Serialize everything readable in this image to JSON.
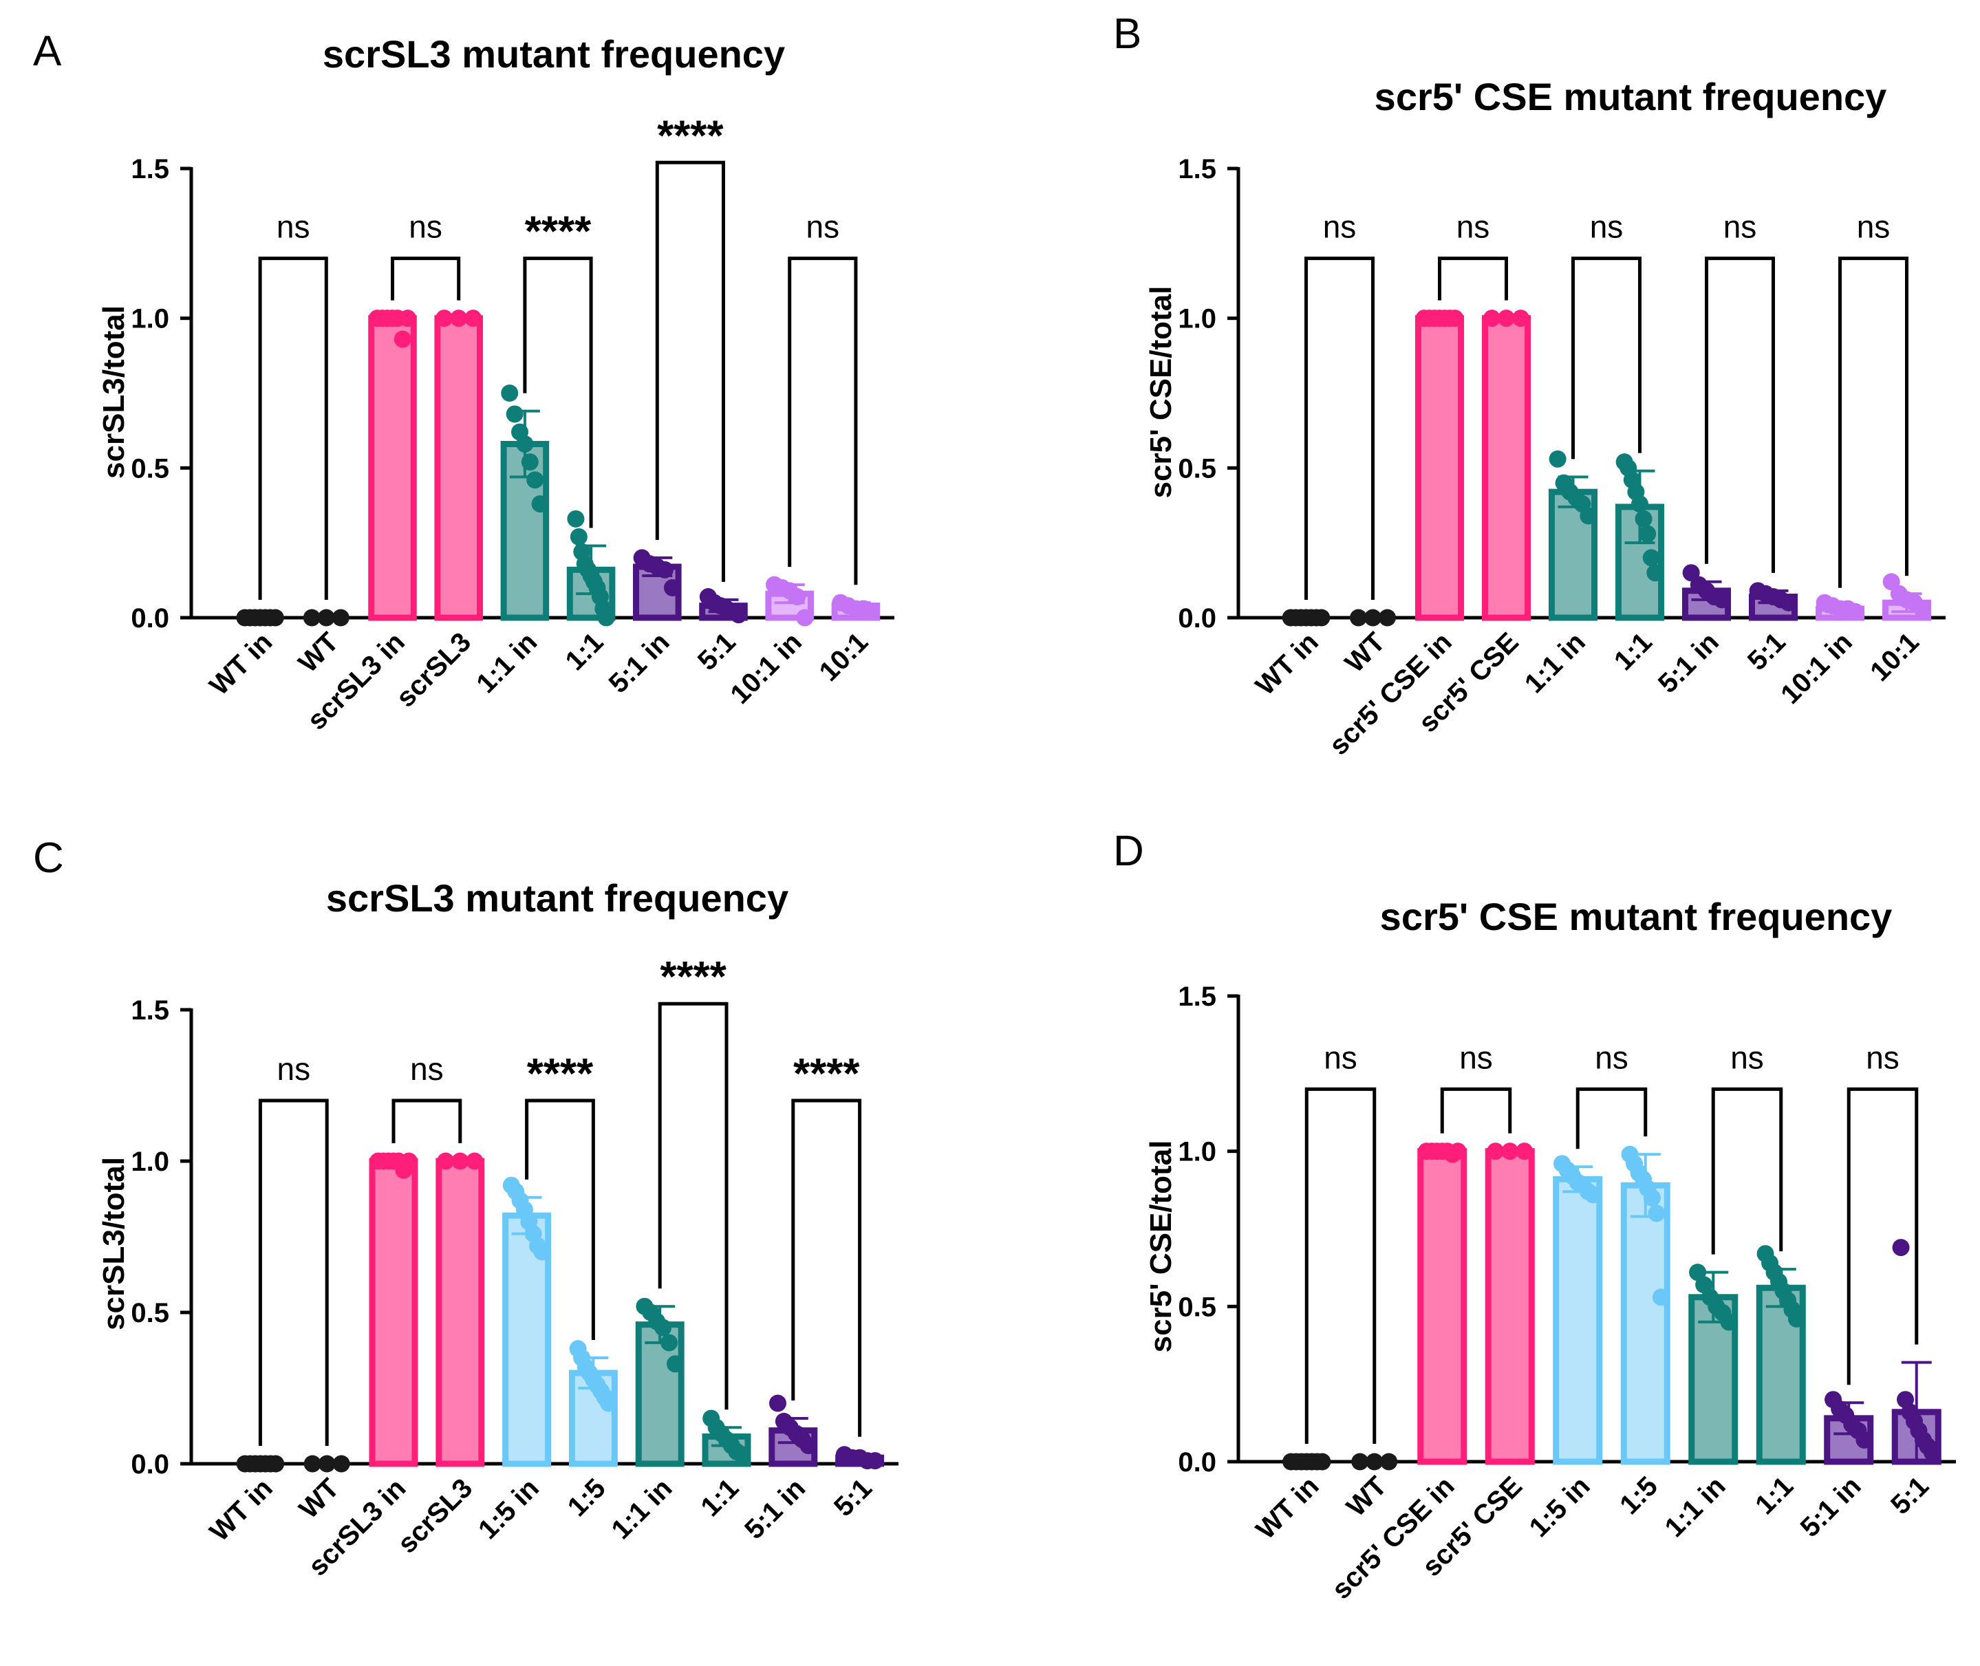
{
  "chart_data": [
    {
      "panel": "A",
      "type": "bar",
      "title": "scrSL3 mutant frequency",
      "ylabel": "scrSL3/total",
      "xlabel": "",
      "ylim": [
        0,
        1.5
      ],
      "yticks": [
        "0.0",
        "0.5",
        "1.0",
        "1.5"
      ],
      "categories": [
        "WT in",
        "WT",
        "scrSL3 in",
        "scrSL3",
        "1:1 in",
        "1:1",
        "5:1 in",
        "5:1",
        "10:1 in",
        "10:1"
      ],
      "values": [
        0.0,
        0.0,
        1.0,
        1.0,
        0.58,
        0.16,
        0.17,
        0.04,
        0.08,
        0.04
      ],
      "errors": [
        0.0,
        0.0,
        0.0,
        0.0,
        0.11,
        0.08,
        0.03,
        0.02,
        0.03,
        0.01
      ],
      "colors": [
        "#1a1a1a",
        "#1a1a1a",
        "#ff1f7a",
        "#ff1f7a",
        "#0f7d78",
        "#0f7d78",
        "#4b1583",
        "#4b1583",
        "#c474f5",
        "#c474f5"
      ],
      "fills": [
        "#1a1a1a",
        "#1a1a1a",
        "#ff7db0",
        "#ff7db0",
        "#7cb7b3",
        "#7cb7b3",
        "#9a79c2",
        "#9a79c2",
        "#e4b6fa",
        "#e4b6fa"
      ],
      "points": [
        [
          0,
          0,
          0,
          0,
          0,
          0,
          0
        ],
        [
          0,
          0,
          0
        ],
        [
          1,
          1,
          1,
          1,
          1,
          0.93,
          1
        ],
        [
          1,
          1,
          1
        ],
        [
          0.75,
          0.68,
          0.62,
          0.58,
          0.52,
          0.46,
          0.38
        ],
        [
          0.33,
          0.27,
          0.22,
          0.18,
          0.16,
          0.14,
          0.12,
          0.1,
          0.07,
          0.03,
          0.0
        ],
        [
          0.2,
          0.18,
          0.17,
          0.16,
          0.1
        ],
        [
          0.07,
          0.05,
          0.04,
          0.03,
          0.02,
          0.01
        ],
        [
          0.11,
          0.1,
          0.09,
          0.07,
          0.0
        ],
        [
          0.05,
          0.04,
          0.03,
          0.03,
          0.02
        ]
      ],
      "comparisons": [
        {
          "pair": [
            0,
            1
          ],
          "label": "ns",
          "y": 1.2
        },
        {
          "pair": [
            2,
            3
          ],
          "label": "ns",
          "y": 1.2
        },
        {
          "pair": [
            4,
            5
          ],
          "label": "****",
          "y": 1.2
        },
        {
          "pair": [
            6,
            7
          ],
          "label": "****",
          "y": 1.52
        },
        {
          "pair": [
            8,
            9
          ],
          "label": "ns",
          "y": 1.2
        }
      ]
    },
    {
      "panel": "B",
      "type": "bar",
      "title": "scr5' CSE mutant frequency",
      "ylabel": "scr5' CSE/total",
      "xlabel": "",
      "ylim": [
        0,
        1.5
      ],
      "yticks": [
        "0.0",
        "0.5",
        "1.0",
        "1.5"
      ],
      "categories": [
        "WT in",
        "WT",
        "scr5' CSE in",
        "scr5' CSE",
        "1:1 in",
        "1:1",
        "5:1 in",
        "5:1",
        "10:1 in",
        "10:1"
      ],
      "values": [
        0.0,
        0.0,
        1.0,
        1.0,
        0.42,
        0.37,
        0.09,
        0.07,
        0.03,
        0.05
      ],
      "errors": [
        0.0,
        0.0,
        0.0,
        0.0,
        0.05,
        0.12,
        0.03,
        0.02,
        0.01,
        0.03
      ],
      "colors": [
        "#1a1a1a",
        "#1a1a1a",
        "#ff1f7a",
        "#ff1f7a",
        "#0f7d78",
        "#0f7d78",
        "#4b1583",
        "#4b1583",
        "#c474f5",
        "#c474f5"
      ],
      "fills": [
        "#1a1a1a",
        "#1a1a1a",
        "#ff7db0",
        "#ff7db0",
        "#7cb7b3",
        "#7cb7b3",
        "#9a79c2",
        "#9a79c2",
        "#e4b6fa",
        "#e4b6fa"
      ],
      "points": [
        [
          0,
          0,
          0,
          0,
          0,
          0,
          0
        ],
        [
          0,
          0,
          0
        ],
        [
          1,
          1,
          1,
          1,
          1,
          1,
          1
        ],
        [
          1,
          1,
          1
        ],
        [
          0.53,
          0.45,
          0.42,
          0.4,
          0.38,
          0.34
        ],
        [
          0.52,
          0.5,
          0.46,
          0.42,
          0.38,
          0.33,
          0.28,
          0.2,
          0.15
        ],
        [
          0.15,
          0.11,
          0.09,
          0.07,
          0.06
        ],
        [
          0.09,
          0.08,
          0.07,
          0.06,
          0.05
        ],
        [
          0.05,
          0.04,
          0.03,
          0.03,
          0.02
        ],
        [
          0.12,
          0.08,
          0.06,
          0.05,
          0.03
        ]
      ],
      "comparisons": [
        {
          "pair": [
            0,
            1
          ],
          "label": "ns",
          "y": 1.2
        },
        {
          "pair": [
            2,
            3
          ],
          "label": "ns",
          "y": 1.2
        },
        {
          "pair": [
            4,
            5
          ],
          "label": "ns",
          "y": 1.2
        },
        {
          "pair": [
            6,
            7
          ],
          "label": "ns",
          "y": 1.2
        },
        {
          "pair": [
            8,
            9
          ],
          "label": "ns",
          "y": 1.2
        }
      ]
    },
    {
      "panel": "C",
      "type": "bar",
      "title": "scrSL3 mutant frequency",
      "ylabel": "scrSL3/total",
      "xlabel": "",
      "ylim": [
        0,
        1.5
      ],
      "yticks": [
        "0.0",
        "0.5",
        "1.0",
        "1.5"
      ],
      "categories": [
        "WT in",
        "WT",
        "scrSL3 in",
        "scrSL3",
        "1:5 in",
        "1:5",
        "1:1 in",
        "1:1",
        "5:1 in",
        "5:1"
      ],
      "values": [
        0.0,
        0.0,
        1.0,
        1.0,
        0.82,
        0.3,
        0.46,
        0.09,
        0.11,
        0.02
      ],
      "errors": [
        0.0,
        0.0,
        0.0,
        0.0,
        0.06,
        0.05,
        0.06,
        0.03,
        0.04,
        0.01
      ],
      "colors": [
        "#1a1a1a",
        "#1a1a1a",
        "#ff1f7a",
        "#ff1f7a",
        "#69c8f7",
        "#69c8f7",
        "#0f7d78",
        "#0f7d78",
        "#4b1583",
        "#4b1583"
      ],
      "fills": [
        "#1a1a1a",
        "#1a1a1a",
        "#ff7db0",
        "#ff7db0",
        "#b8e4fb",
        "#b8e4fb",
        "#7cb7b3",
        "#7cb7b3",
        "#9a79c2",
        "#9a79c2"
      ],
      "points": [
        [
          0,
          0,
          0,
          0,
          0,
          0,
          0
        ],
        [
          0,
          0,
          0
        ],
        [
          1,
          1,
          1,
          1,
          1,
          0.97,
          1
        ],
        [
          1,
          1,
          1
        ],
        [
          0.92,
          0.9,
          0.87,
          0.84,
          0.8,
          0.76,
          0.72,
          0.7
        ],
        [
          0.38,
          0.35,
          0.32,
          0.3,
          0.28,
          0.26,
          0.24,
          0.22,
          0.2
        ],
        [
          0.52,
          0.5,
          0.47,
          0.45,
          0.4,
          0.33
        ],
        [
          0.15,
          0.12,
          0.1,
          0.08,
          0.06,
          0.04,
          0.03
        ],
        [
          0.2,
          0.14,
          0.12,
          0.1,
          0.08,
          0.06
        ],
        [
          0.03,
          0.02,
          0.02,
          0.01,
          0.01
        ]
      ],
      "comparisons": [
        {
          "pair": [
            0,
            1
          ],
          "label": "ns",
          "y": 1.2
        },
        {
          "pair": [
            2,
            3
          ],
          "label": "ns",
          "y": 1.2
        },
        {
          "pair": [
            4,
            5
          ],
          "label": "****",
          "y": 1.2
        },
        {
          "pair": [
            6,
            7
          ],
          "label": "****",
          "y": 1.52
        },
        {
          "pair": [
            8,
            9
          ],
          "label": "****",
          "y": 1.2
        }
      ]
    },
    {
      "panel": "D",
      "type": "bar",
      "title": "scr5' CSE mutant frequency",
      "ylabel": "scr5' CSE/total",
      "xlabel": "",
      "ylim": [
        0,
        1.5
      ],
      "yticks": [
        "0.0",
        "0.5",
        "1.0",
        "1.5"
      ],
      "categories": [
        "WT in",
        "WT",
        "scr5' CSE in",
        "scr5' CSE",
        "1:5 in",
        "1:5",
        "1:1 in",
        "1:1",
        "5:1 in",
        "5:1"
      ],
      "values": [
        0.0,
        0.0,
        1.0,
        1.0,
        0.91,
        0.89,
        0.53,
        0.56,
        0.14,
        0.16
      ],
      "errors": [
        0.0,
        0.0,
        0.0,
        0.0,
        0.04,
        0.1,
        0.08,
        0.06,
        0.05,
        0.16
      ],
      "colors": [
        "#1a1a1a",
        "#1a1a1a",
        "#ff1f7a",
        "#ff1f7a",
        "#69c8f7",
        "#69c8f7",
        "#0f7d78",
        "#0f7d78",
        "#4b1583",
        "#4b1583"
      ],
      "fills": [
        "#1a1a1a",
        "#1a1a1a",
        "#ff7db0",
        "#ff7db0",
        "#b8e4fb",
        "#b8e4fb",
        "#7cb7b3",
        "#7cb7b3",
        "#9a79c2",
        "#9a79c2"
      ],
      "points": [
        [
          0,
          0,
          0,
          0,
          0,
          0,
          0
        ],
        [
          0,
          0,
          0
        ],
        [
          1,
          1,
          1,
          1,
          1,
          0.99,
          1
        ],
        [
          1,
          1,
          1
        ],
        [
          0.96,
          0.94,
          0.92,
          0.9,
          0.89,
          0.87,
          0.86
        ],
        [
          0.99,
          0.96,
          0.93,
          0.91,
          0.88,
          0.85,
          0.8,
          0.53
        ],
        [
          0.61,
          0.57,
          0.53,
          0.5,
          0.48,
          0.45
        ],
        [
          0.67,
          0.64,
          0.61,
          0.58,
          0.55,
          0.52,
          0.49,
          0.46
        ],
        [
          0.2,
          0.17,
          0.15,
          0.12,
          0.1,
          0.07
        ],
        [
          0.69,
          0.2,
          0.16,
          0.13,
          0.1,
          0.07,
          0.05,
          0.03
        ]
      ],
      "comparisons": [
        {
          "pair": [
            0,
            1
          ],
          "label": "ns",
          "y": 1.2
        },
        {
          "pair": [
            2,
            3
          ],
          "label": "ns",
          "y": 1.2
        },
        {
          "pair": [
            4,
            5
          ],
          "label": "ns",
          "y": 1.2
        },
        {
          "pair": [
            6,
            7
          ],
          "label": "ns",
          "y": 1.2
        },
        {
          "pair": [
            8,
            9
          ],
          "label": "ns",
          "y": 1.2
        }
      ]
    }
  ]
}
